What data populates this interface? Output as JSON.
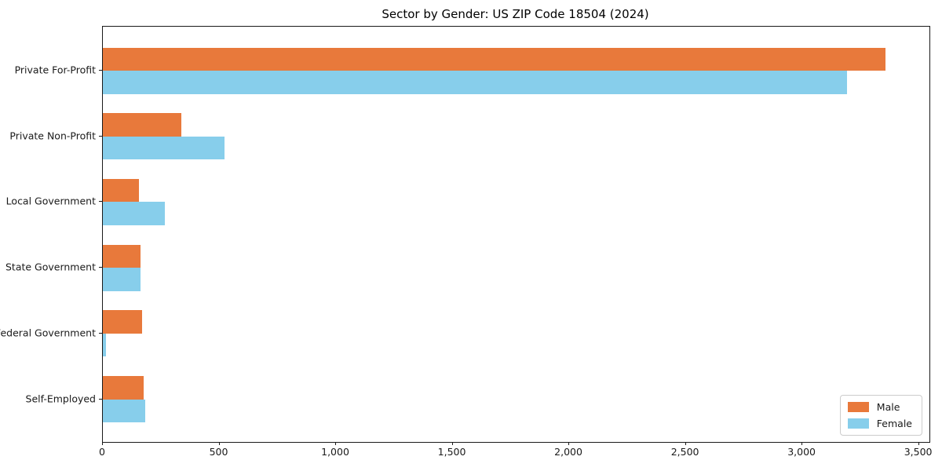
{
  "chart_data": {
    "type": "bar",
    "orientation": "horizontal",
    "title": "Sector by Gender: US ZIP Code 18504 (2024)",
    "categories": [
      "Private For-Profit",
      "Private Non-Profit",
      "Local Government",
      "State Government",
      "Federal Government",
      "Self-Employed"
    ],
    "series": [
      {
        "name": "Male",
        "color": "#E8793B",
        "values": [
          3358,
          338,
          154,
          163,
          167,
          174
        ]
      },
      {
        "name": "Female",
        "color": "#87CEEB",
        "values": [
          3192,
          523,
          265,
          160,
          12,
          183
        ]
      }
    ],
    "xlabel": "",
    "ylabel": "",
    "xlim": [
      0,
      3545
    ],
    "xticks": [
      0,
      500,
      1000,
      1500,
      2000,
      2500,
      3000,
      3500
    ],
    "xtick_labels": [
      "0",
      "500",
      "1,000",
      "1,500",
      "2,000",
      "2,500",
      "3,000",
      "3,500"
    ],
    "grid": false,
    "legend_position": "lower right",
    "axis_color": "#1a1a1a",
    "background_color": "#ffffff"
  }
}
